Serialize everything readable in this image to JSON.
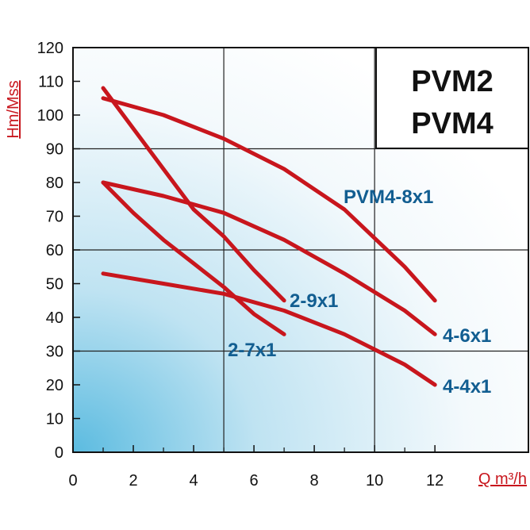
{
  "chart_data": {
    "type": "line",
    "title_lines": [
      "PVM2",
      "PVM4"
    ],
    "xlabel": "Q m³/h",
    "ylabel": "Hm/Mss",
    "xlim": [
      0,
      12
    ],
    "ylim": [
      0,
      120
    ],
    "x_ticks": [
      "0",
      "2",
      "4",
      "6",
      "8",
      "10",
      "12"
    ],
    "y_ticks": [
      "0",
      "10",
      "20",
      "30",
      "40",
      "50",
      "60",
      "70",
      "80",
      "90",
      "100",
      "110",
      "120"
    ],
    "grid": true,
    "colors": {
      "curve": "#c8161d",
      "label": "#125e91",
      "axis_label": "#c8161d",
      "gradient": "#5bbbe0"
    },
    "series": [
      {
        "name": "PVM4-8x1",
        "x": [
          1,
          3,
          5,
          7,
          9,
          11,
          12
        ],
        "y": [
          105,
          100,
          93,
          84,
          72,
          55,
          45
        ]
      },
      {
        "name": "2-9x1",
        "x": [
          1,
          2,
          3,
          4,
          5,
          6,
          7
        ],
        "y": [
          108,
          96,
          84,
          72,
          64,
          54,
          45
        ]
      },
      {
        "name": "4-6x1",
        "x": [
          1,
          3,
          5,
          7,
          9,
          11,
          12
        ],
        "y": [
          80,
          76,
          71,
          63,
          53,
          42,
          35
        ]
      },
      {
        "name": "2-7x1",
        "x": [
          1,
          2,
          3,
          4,
          5,
          6,
          7
        ],
        "y": [
          80,
          71,
          63,
          56,
          49,
          41,
          35
        ]
      },
      {
        "name": "4-4x1",
        "x": [
          1,
          3,
          5,
          7,
          9,
          11,
          12
        ],
        "y": [
          53,
          50,
          47,
          42,
          35,
          26,
          20
        ]
      }
    ]
  }
}
